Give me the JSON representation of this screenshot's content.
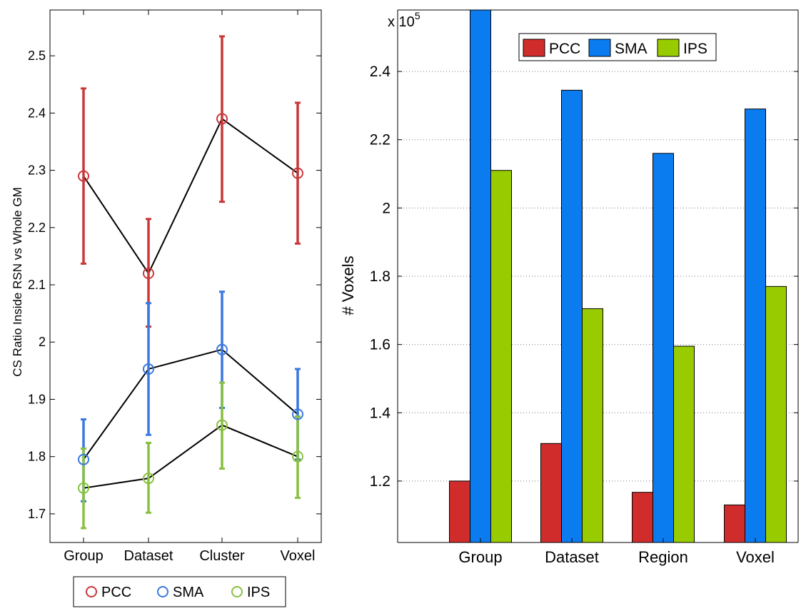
{
  "chart_data": [
    {
      "type": "line",
      "title": "",
      "xlabel": "",
      "ylabel": "CS Ratio Inside RSN vs Whole GM",
      "categories": [
        "Group",
        "Dataset",
        "Cluster",
        "Voxel"
      ],
      "ylim": [
        1.65,
        2.58
      ],
      "yticks": [
        1.7,
        1.8,
        1.9,
        2.0,
        2.1,
        2.2,
        2.3,
        2.4,
        2.5
      ],
      "ytick_labels": [
        "1.7",
        "1.8",
        "1.9",
        "2",
        "2.1",
        "2.2",
        "2.3",
        "2.4",
        "2.5"
      ],
      "legend_position": "bottom",
      "series": [
        {
          "name": "PCC",
          "color": "#c8373a",
          "values": [
            2.29,
            2.12,
            2.39,
            2.295
          ],
          "err_low": [
            2.137,
            2.027,
            2.245,
            2.172
          ],
          "err_high": [
            2.443,
            2.215,
            2.534,
            2.418
          ]
        },
        {
          "name": "SMA",
          "color": "#3a78e0",
          "values": [
            1.795,
            1.953,
            1.987,
            1.874
          ],
          "err_low": [
            1.722,
            1.838,
            1.885,
            1.795
          ],
          "err_high": [
            1.865,
            2.068,
            2.088,
            1.953
          ]
        },
        {
          "name": "IPS",
          "color": "#88c040",
          "values": [
            1.745,
            1.762,
            1.855,
            1.8
          ],
          "err_low": [
            1.675,
            1.702,
            1.779,
            1.728
          ],
          "err_high": [
            1.814,
            1.824,
            1.929,
            1.87
          ]
        }
      ]
    },
    {
      "type": "bar",
      "title": "",
      "xlabel": "",
      "ylabel": "# Voxels",
      "axis_multiplier": "x 10",
      "axis_multiplier_exp": "5",
      "categories": [
        "Group",
        "Dataset",
        "Region",
        "Voxel"
      ],
      "ylim": [
        1.02,
        2.58
      ],
      "yticks": [
        1.2,
        1.4,
        1.6,
        1.8,
        2.0,
        2.2,
        2.4
      ],
      "ytick_labels": [
        "1.2",
        "1.4",
        "1.6",
        "1.8",
        "2",
        "2.2",
        "2.4"
      ],
      "grid": true,
      "legend_position": "top",
      "series": [
        {
          "name": "PCC",
          "color": "#d02c2c",
          "values": [
            1.2,
            1.31,
            1.167,
            1.13
          ]
        },
        {
          "name": "SMA",
          "color": "#0a7cf0",
          "values": [
            2.58,
            2.345,
            2.16,
            2.29
          ]
        },
        {
          "name": "IPS",
          "color": "#99cc00",
          "values": [
            2.11,
            1.705,
            1.595,
            1.77
          ]
        }
      ]
    }
  ]
}
